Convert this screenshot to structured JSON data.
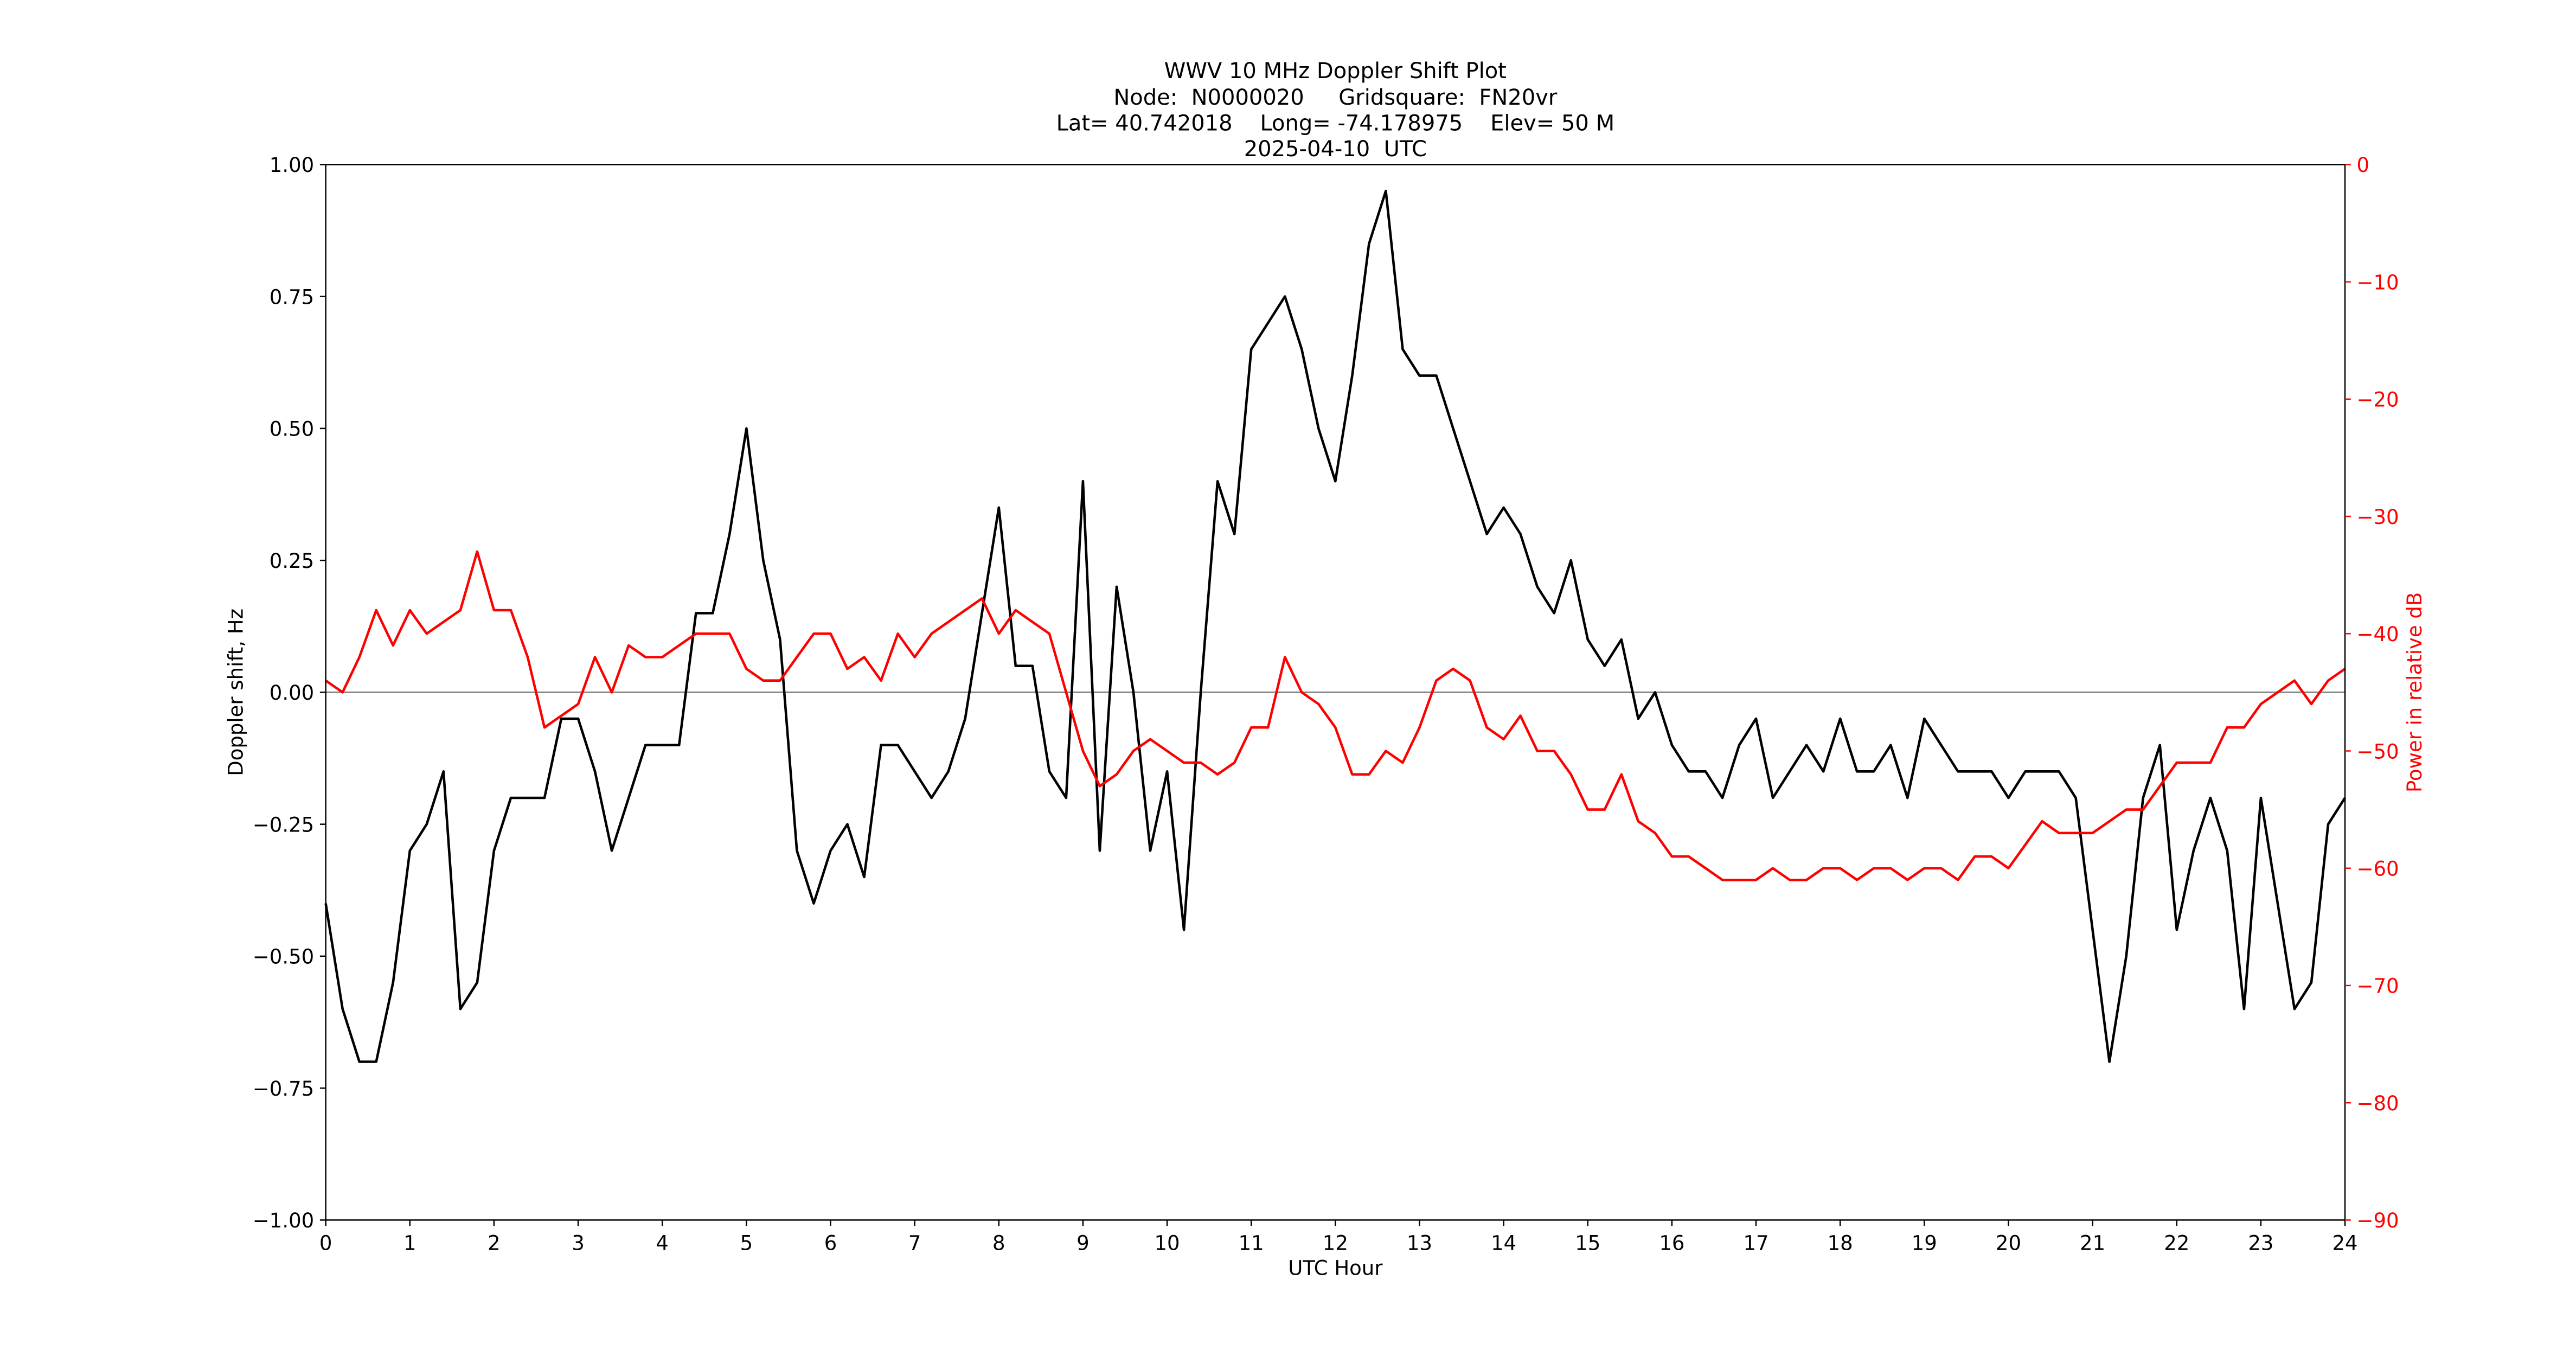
{
  "chart_data": {
    "type": "line",
    "title": "WWV 10 MHz Doppler Shift Plot",
    "subtitle": [
      "Node:  N0000020     Gridsquare:  FN20vr",
      "Lat= 40.742018    Long= -74.178975    Elev= 50 M",
      "2025-04-10  UTC"
    ],
    "xlabel": "UTC Hour",
    "ylabel": "Doppler shift, Hz",
    "y2label": "Power in relative dB",
    "y2color": "#ff0000",
    "x": [
      0,
      0.2,
      0.4,
      0.6,
      0.8,
      1,
      1.2,
      1.4,
      1.6,
      1.8,
      2,
      2.2,
      2.4,
      2.6,
      2.8,
      3,
      3.2,
      3.4,
      3.6,
      3.8,
      4,
      4.2,
      4.4,
      4.6,
      4.8,
      5,
      5.2,
      5.4,
      5.6,
      5.8,
      6,
      6.2,
      6.4,
      6.6,
      6.8,
      7,
      7.2,
      7.4,
      7.6,
      7.8,
      8,
      8.2,
      8.4,
      8.6,
      8.8,
      9,
      9.2,
      9.4,
      9.6,
      9.8,
      10,
      10.2,
      10.4,
      10.6,
      10.8,
      11,
      11.2,
      11.4,
      11.6,
      11.8,
      12,
      12.2,
      12.4,
      12.6,
      12.8,
      13,
      13.2,
      13.4,
      13.6,
      13.8,
      14,
      14.2,
      14.4,
      14.6,
      14.8,
      15,
      15.2,
      15.4,
      15.6,
      15.8,
      16,
      16.2,
      16.4,
      16.6,
      16.8,
      17,
      17.2,
      17.4,
      17.6,
      17.8,
      18,
      18.2,
      18.4,
      18.6,
      18.8,
      19,
      19.2,
      19.4,
      19.6,
      19.8,
      20,
      20.2,
      20.4,
      20.6,
      20.8,
      21,
      21.2,
      21.4,
      21.6,
      21.8,
      22,
      22.2,
      22.4,
      22.6,
      22.8,
      23,
      23.2,
      23.4,
      23.6,
      23.8,
      24
    ],
    "series": [
      {
        "color": "#000000",
        "values": [
          -0.4,
          -0.6,
          -0.7,
          -0.7,
          -0.55,
          -0.3,
          -0.25,
          -0.15,
          -0.6,
          -0.55,
          -0.3,
          -0.2,
          -0.2,
          -0.2,
          -0.05,
          -0.05,
          -0.15,
          -0.3,
          -0.2,
          -0.1,
          -0.1,
          -0.1,
          0.15,
          0.15,
          0.3,
          0.5,
          0.25,
          0.1,
          -0.3,
          -0.4,
          -0.3,
          -0.25,
          -0.35,
          -0.1,
          -0.1,
          -0.15,
          -0.2,
          -0.15,
          -0.05,
          0.15,
          0.35,
          0.05,
          0.05,
          -0.15,
          -0.2,
          0.4,
          -0.3,
          0.2,
          0.0,
          -0.3,
          -0.15,
          -0.45,
          0.0,
          0.4,
          0.3,
          0.65,
          0.7,
          0.75,
          0.65,
          0.5,
          0.4,
          0.6,
          0.85,
          0.95,
          0.65,
          0.6,
          0.6,
          0.5,
          0.4,
          0.3,
          0.35,
          0.3,
          0.2,
          0.15,
          0.25,
          0.1,
          0.05,
          0.1,
          -0.05,
          0.0,
          -0.1,
          -0.15,
          -0.15,
          -0.2,
          -0.1,
          -0.05,
          -0.2,
          -0.15,
          -0.1,
          -0.15,
          -0.05,
          -0.15,
          -0.15,
          -0.1,
          -0.2,
          -0.05,
          -0.1,
          -0.15,
          -0.15,
          -0.15,
          -0.2,
          -0.15,
          -0.15,
          -0.15,
          -0.2,
          -0.45,
          -0.7,
          -0.5,
          -0.2,
          -0.1,
          -0.45,
          -0.3,
          -0.2,
          -0.3,
          -0.6,
          -0.2,
          -0.4,
          -0.6,
          -0.55,
          -0.25,
          -0.2
        ]
      },
      {
        "color": "#ff0000",
        "axis": "y2",
        "values": [
          -44,
          -45,
          -42,
          -38,
          -41,
          -38,
          -40,
          -39,
          -38,
          -33,
          -38,
          -38,
          -42,
          -48,
          -47,
          -46,
          -42,
          -45,
          -41,
          -42,
          -42,
          -41,
          -40,
          -40,
          -40,
          -43,
          -44,
          -44,
          -42,
          -40,
          -40,
          -43,
          -42,
          -44,
          -40,
          -42,
          -40,
          -39,
          -38,
          -37,
          -40,
          -38,
          -39,
          -40,
          -45,
          -50,
          -53,
          -52,
          -50,
          -49,
          -50,
          -51,
          -51,
          -52,
          -51,
          -48,
          -48,
          -42,
          -45,
          -46,
          -48,
          -52,
          -52,
          -50,
          -51,
          -48,
          -44,
          -43,
          -44,
          -48,
          -49,
          -47,
          -50,
          -50,
          -52,
          -55,
          -55,
          -52,
          -56,
          -57,
          -59,
          -59,
          -60,
          -61,
          -61,
          -61,
          -60,
          -61,
          -61,
          -60,
          -60,
          -61,
          -60,
          -60,
          -61,
          -60,
          -60,
          -61,
          -59,
          -59,
          -60,
          -58,
          -56,
          -57,
          -57,
          -57,
          -56,
          -55,
          -55,
          -53,
          -51,
          -51,
          -51,
          -48,
          -48,
          -46,
          -45,
          -44,
          -46,
          -44,
          -43
        ]
      }
    ],
    "xlim": [
      0,
      24
    ],
    "xticks": [
      0,
      1,
      2,
      3,
      4,
      5,
      6,
      7,
      8,
      9,
      10,
      11,
      12,
      13,
      14,
      15,
      16,
      17,
      18,
      19,
      20,
      21,
      22,
      23,
      24
    ],
    "ylim": [
      -1,
      1
    ],
    "yticks": [
      {
        "value": -1,
        "label": "−1.00"
      },
      {
        "value": -0.75,
        "label": "−0.75"
      },
      {
        "value": -0.5,
        "label": "−0.50"
      },
      {
        "value": -0.25,
        "label": "−0.25"
      },
      {
        "value": 0,
        "label": "0.00"
      },
      {
        "value": 0.25,
        "label": "0.25"
      },
      {
        "value": 0.5,
        "label": "0.50"
      },
      {
        "value": 0.75,
        "label": "0.75"
      },
      {
        "value": 1,
        "label": "1.00"
      }
    ],
    "y2lim": [
      -90,
      0
    ],
    "y2ticks": [
      {
        "value": -90,
        "label": "−90"
      },
      {
        "value": -80,
        "label": "−80"
      },
      {
        "value": -70,
        "label": "−70"
      },
      {
        "value": -60,
        "label": "−60"
      },
      {
        "value": -50,
        "label": "−50"
      },
      {
        "value": -40,
        "label": "−40"
      },
      {
        "value": -30,
        "label": "−30"
      },
      {
        "value": -20,
        "label": "−20"
      },
      {
        "value": -10,
        "label": "−10"
      },
      0
    ],
    "hline": 0,
    "hline_color": "#888888"
  }
}
